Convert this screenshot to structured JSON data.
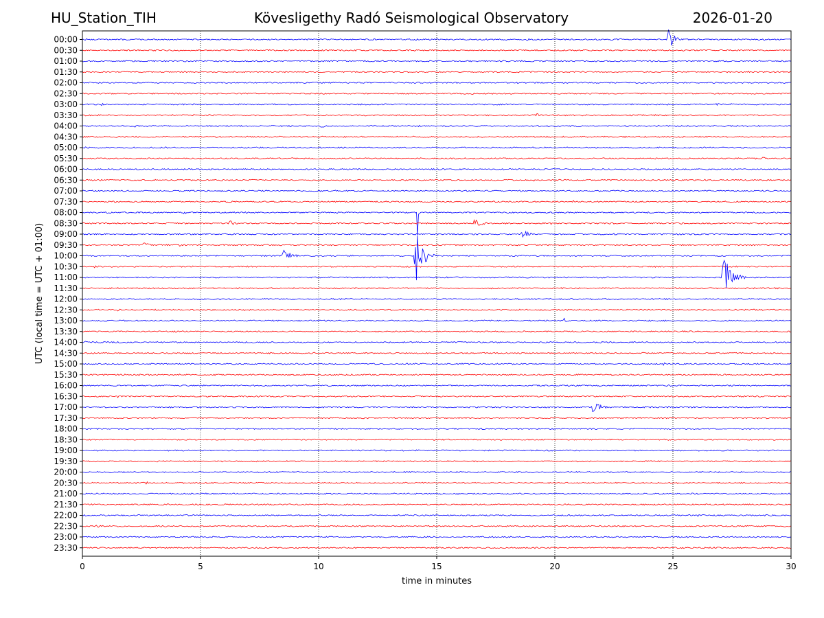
{
  "header": {
    "station": "HU_Station_TIH",
    "observatory": "Kövesligethy Radó Seismological Observatory",
    "date": "2026-01-20"
  },
  "chart_data": {
    "type": "line",
    "title": "Kövesligethy Radó Seismological Observatory",
    "xlabel": "time in minutes",
    "ylabel": "UTC (local time = UTC + 01:00)",
    "xlim": [
      0,
      30
    ],
    "x_ticks": [
      0,
      5,
      10,
      15,
      20,
      25,
      30
    ],
    "x_tick_labels": [
      "0",
      "5",
      "10",
      "15",
      "20",
      "25",
      "30"
    ],
    "grid": "vertical dotted at x ticks",
    "colors": {
      "even_rows": "#0000ff",
      "odd_rows": "#ff0000"
    },
    "traces": [
      {
        "label": "00:00",
        "color": "#0000ff",
        "events": [
          {
            "t": 24.8,
            "amp": 18,
            "dur": 0.5
          },
          {
            "t": 18.8,
            "amp": 2,
            "dur": 0.5
          },
          {
            "t": 22.8,
            "amp": 2,
            "dur": 0.4
          }
        ]
      },
      {
        "label": "00:30",
        "color": "#ff0000",
        "events": []
      },
      {
        "label": "01:00",
        "color": "#0000ff",
        "events": [
          {
            "t": 26.5,
            "amp": 1.5,
            "dur": 0.3
          }
        ]
      },
      {
        "label": "01:30",
        "color": "#ff0000",
        "events": []
      },
      {
        "label": "02:00",
        "color": "#0000ff",
        "events": [
          {
            "t": 9.5,
            "amp": 2,
            "dur": 0.2
          }
        ]
      },
      {
        "label": "02:30",
        "color": "#ff0000",
        "events": [
          {
            "t": 10.1,
            "amp": 2.5,
            "dur": 0.4
          },
          {
            "t": 16.5,
            "amp": 2,
            "dur": 0.2
          }
        ]
      },
      {
        "label": "03:00",
        "color": "#0000ff",
        "events": [
          {
            "t": 0.8,
            "amp": 3,
            "dur": 0.4
          },
          {
            "t": 26.8,
            "amp": 3.5,
            "dur": 0.3
          },
          {
            "t": 27.4,
            "amp": 3.5,
            "dur": 0.4
          }
        ]
      },
      {
        "label": "03:30",
        "color": "#ff0000",
        "events": [
          {
            "t": 19.2,
            "amp": 4,
            "dur": 0.3
          }
        ]
      },
      {
        "label": "04:00",
        "color": "#0000ff",
        "events": [
          {
            "t": 2.2,
            "amp": 2.5,
            "dur": 0.3
          },
          {
            "t": 10.1,
            "amp": 4,
            "dur": 0.3
          }
        ]
      },
      {
        "label": "04:30",
        "color": "#ff0000",
        "events": [
          {
            "t": 14.0,
            "amp": 1.5,
            "dur": 0.3
          }
        ]
      },
      {
        "label": "05:00",
        "color": "#0000ff",
        "events": [
          {
            "t": 0.1,
            "amp": 2,
            "dur": 0.3
          },
          {
            "t": 3.5,
            "amp": 1.5,
            "dur": 0.3
          },
          {
            "t": 9.8,
            "amp": 1.5,
            "dur": 0.3
          }
        ]
      },
      {
        "label": "05:30",
        "color": "#ff0000",
        "events": [
          {
            "t": 18.7,
            "amp": 1.5,
            "dur": 0.3
          },
          {
            "t": 28.8,
            "amp": 3,
            "dur": 0.4
          }
        ]
      },
      {
        "label": "06:00",
        "color": "#0000ff",
        "events": [
          {
            "t": 14.8,
            "amp": 1.5,
            "dur": 0.2
          }
        ]
      },
      {
        "label": "06:30",
        "color": "#ff0000",
        "events": [
          {
            "t": 19.1,
            "amp": 2,
            "dur": 0.3
          }
        ]
      },
      {
        "label": "07:00",
        "color": "#0000ff",
        "events": [
          {
            "t": 22.3,
            "amp": 2.5,
            "dur": 0.3
          }
        ]
      },
      {
        "label": "07:30",
        "color": "#ff0000",
        "events": [
          {
            "t": 20.8,
            "amp": 2.5,
            "dur": 0.2
          },
          {
            "t": 11.8,
            "amp": 1.5,
            "dur": 0.3
          }
        ]
      },
      {
        "label": "08:00",
        "color": "#0000ff",
        "events": [
          {
            "t": 14.2,
            "amp": 50,
            "dur": 0.05
          },
          {
            "t": 4.3,
            "amp": 3,
            "dur": 0.3
          }
        ]
      },
      {
        "label": "08:30",
        "color": "#ff0000",
        "events": [
          {
            "t": 6.2,
            "amp": 6,
            "dur": 0.5
          },
          {
            "t": 16.6,
            "amp": 8,
            "dur": 0.6
          },
          {
            "t": 19.8,
            "amp": 3,
            "dur": 0.3
          }
        ]
      },
      {
        "label": "09:00",
        "color": "#0000ff",
        "events": [
          {
            "t": 18.6,
            "amp": 7,
            "dur": 0.7
          },
          {
            "t": 22.5,
            "amp": 2,
            "dur": 0.3
          }
        ]
      },
      {
        "label": "09:30",
        "color": "#ff0000",
        "events": [
          {
            "t": 2.6,
            "amp": 4,
            "dur": 0.5
          },
          {
            "t": 4.1,
            "amp": 3,
            "dur": 0.3
          }
        ]
      },
      {
        "label": "10:00",
        "color": "#0000ff",
        "events": [
          {
            "t": 8.5,
            "amp": 10,
            "dur": 0.7
          },
          {
            "t": 14.1,
            "amp": 45,
            "dur": 0.6
          }
        ]
      },
      {
        "label": "10:30",
        "color": "#ff0000",
        "events": [
          {
            "t": 0.5,
            "amp": 2,
            "dur": 0.3
          },
          {
            "t": 15.6,
            "amp": 2,
            "dur": 0.2
          }
        ]
      },
      {
        "label": "11:00",
        "color": "#0000ff",
        "events": [
          {
            "t": 27.1,
            "amp": 38,
            "dur": 0.7
          },
          {
            "t": 6.5,
            "amp": 2,
            "dur": 0.2
          }
        ]
      },
      {
        "label": "11:30",
        "color": "#ff0000",
        "events": []
      },
      {
        "label": "12:00",
        "color": "#0000ff",
        "events": [
          {
            "t": 25.5,
            "amp": 1.5,
            "dur": 0.5
          }
        ]
      },
      {
        "label": "12:30",
        "color": "#ff0000",
        "events": [
          {
            "t": 1.5,
            "amp": 2,
            "dur": 0.5
          }
        ]
      },
      {
        "label": "13:00",
        "color": "#0000ff",
        "events": [
          {
            "t": 20.4,
            "amp": 4,
            "dur": 0.3
          },
          {
            "t": 17.6,
            "amp": 2,
            "dur": 0.2
          }
        ]
      },
      {
        "label": "13:30",
        "color": "#ff0000",
        "events": [
          {
            "t": 10.5,
            "amp": 1.5,
            "dur": 0.3
          }
        ]
      },
      {
        "label": "14:00",
        "color": "#0000ff",
        "events": [
          {
            "t": 0.1,
            "amp": 2.5,
            "dur": 0.3
          }
        ]
      },
      {
        "label": "14:30",
        "color": "#ff0000",
        "events": [
          {
            "t": 9.8,
            "amp": 3.5,
            "dur": 0.2
          },
          {
            "t": 0.2,
            "amp": 2,
            "dur": 0.3
          }
        ]
      },
      {
        "label": "15:00",
        "color": "#0000ff",
        "events": [
          {
            "t": 24.6,
            "amp": 3,
            "dur": 0.3
          },
          {
            "t": 23.0,
            "amp": 1.5,
            "dur": 0.4
          }
        ]
      },
      {
        "label": "15:30",
        "color": "#ff0000",
        "events": [
          {
            "t": 2.4,
            "amp": 2.5,
            "dur": 0.2
          },
          {
            "t": 21.0,
            "amp": 2.5,
            "dur": 0.3
          }
        ]
      },
      {
        "label": "16:00",
        "color": "#0000ff",
        "events": [
          {
            "t": 5.1,
            "amp": 2,
            "dur": 0.2
          },
          {
            "t": 21.9,
            "amp": 2.5,
            "dur": 0.3
          }
        ]
      },
      {
        "label": "16:30",
        "color": "#ff0000",
        "events": [
          {
            "t": 1.5,
            "amp": 2,
            "dur": 0.2
          }
        ]
      },
      {
        "label": "17:00",
        "color": "#0000ff",
        "events": [
          {
            "t": 21.6,
            "amp": 8,
            "dur": 0.8
          }
        ]
      },
      {
        "label": "17:30",
        "color": "#ff0000",
        "events": []
      },
      {
        "label": "18:00",
        "color": "#0000ff",
        "events": [
          {
            "t": 29.2,
            "amp": 1.5,
            "dur": 0.3
          }
        ]
      },
      {
        "label": "18:30",
        "color": "#ff0000",
        "events": []
      },
      {
        "label": "19:00",
        "color": "#0000ff",
        "events": [
          {
            "t": 19.2,
            "amp": 1.5,
            "dur": 0.3
          }
        ]
      },
      {
        "label": "19:30",
        "color": "#ff0000",
        "events": []
      },
      {
        "label": "20:00",
        "color": "#0000ff",
        "events": []
      },
      {
        "label": "20:30",
        "color": "#ff0000",
        "events": [
          {
            "t": 2.7,
            "amp": 2,
            "dur": 0.4
          },
          {
            "t": 14.5,
            "amp": 1.5,
            "dur": 0.2
          }
        ]
      },
      {
        "label": "21:00",
        "color": "#0000ff",
        "events": [
          {
            "t": 15.8,
            "amp": 1.5,
            "dur": 0.6
          }
        ]
      },
      {
        "label": "21:30",
        "color": "#ff0000",
        "events": []
      },
      {
        "label": "22:00",
        "color": "#0000ff",
        "events": [
          {
            "t": 26.0,
            "amp": 2,
            "dur": 1.0
          },
          {
            "t": 29.0,
            "amp": 2,
            "dur": 0.8
          }
        ]
      },
      {
        "label": "22:30",
        "color": "#ff0000",
        "events": [
          {
            "t": 0.6,
            "amp": 3,
            "dur": 0.5
          }
        ]
      },
      {
        "label": "23:00",
        "color": "#0000ff",
        "events": []
      },
      {
        "label": "23:30",
        "color": "#ff0000",
        "events": []
      }
    ]
  }
}
